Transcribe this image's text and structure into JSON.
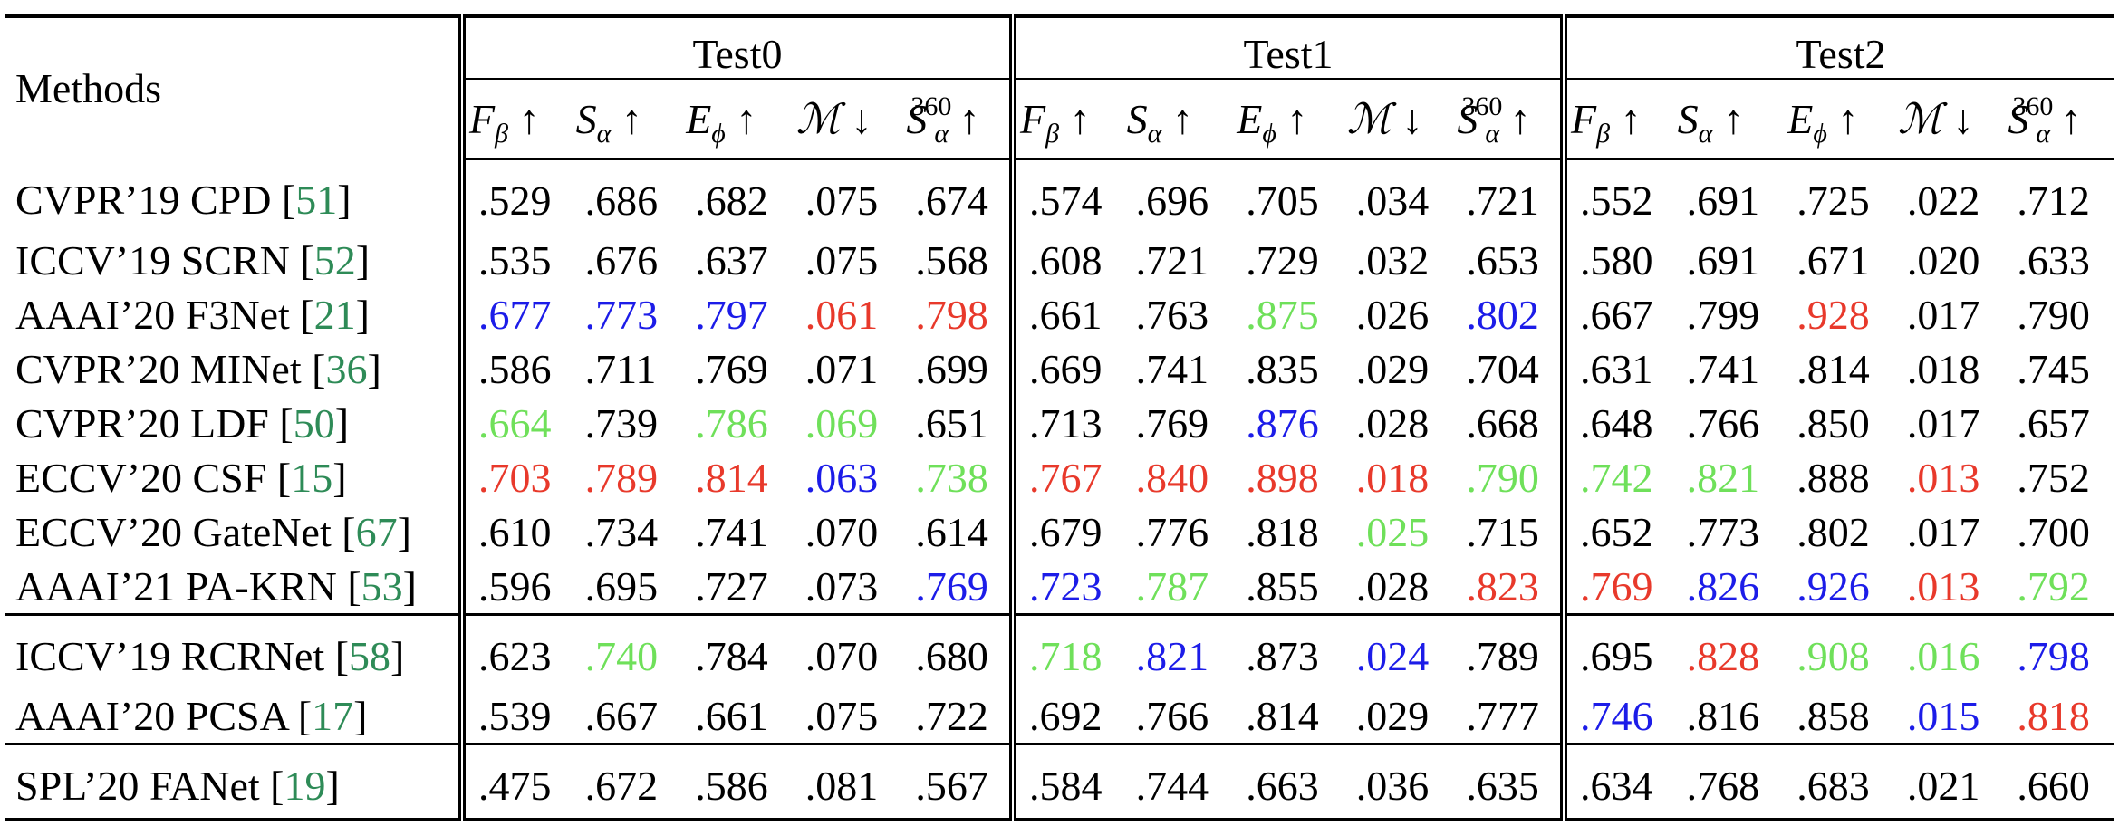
{
  "header": {
    "methods": "Methods",
    "groups": [
      "Test0",
      "Test1",
      "Test2"
    ],
    "columns": [
      {
        "base": "F",
        "sub": "β",
        "arrow": "↑"
      },
      {
        "base": "S",
        "sub": "α",
        "arrow": "↑"
      },
      {
        "base": "E",
        "sub": "ϕ",
        "arrow": "↑"
      },
      {
        "base": "ℳ",
        "arrow": "↓"
      },
      {
        "base": "S",
        "sub": "α",
        "sup": "360",
        "arrow": "↑"
      }
    ]
  },
  "cite_brackets": [
    "[",
    "]"
  ],
  "palette": {
    "k": "#000000",
    "r": "#e8392b",
    "g": "#6fe05a",
    "b": "#1c1ce8",
    "cite": "#2e8b57"
  },
  "groups": [
    [
      {
        "method": "CVPR’19 CPD",
        "ref": "51",
        "values": [
          ".529",
          ".686",
          ".682",
          ".075",
          ".674",
          ".574",
          ".696",
          ".705",
          ".034",
          ".721",
          ".552",
          ".691",
          ".725",
          ".022",
          ".712"
        ],
        "colors": "kkkkkkkkkkkkkkk"
      },
      {
        "method": "ICCV’19 SCRN",
        "ref": "52",
        "values": [
          ".535",
          ".676",
          ".637",
          ".075",
          ".568",
          ".608",
          ".721",
          ".729",
          ".032",
          ".653",
          ".580",
          ".691",
          ".671",
          ".020",
          ".633"
        ],
        "colors": "kkkkkkkkkkkkkkk"
      },
      {
        "method": "AAAI’20 F3Net",
        "ref": "21",
        "values": [
          ".677",
          ".773",
          ".797",
          ".061",
          ".798",
          ".661",
          ".763",
          ".875",
          ".026",
          ".802",
          ".667",
          ".799",
          ".928",
          ".017",
          ".790"
        ],
        "colors": "bbbrrkkgkbkkrkk"
      },
      {
        "method": "CVPR’20 MINet",
        "ref": "36",
        "values": [
          ".586",
          ".711",
          ".769",
          ".071",
          ".699",
          ".669",
          ".741",
          ".835",
          ".029",
          ".704",
          ".631",
          ".741",
          ".814",
          ".018",
          ".745"
        ],
        "colors": "kkkkkkkkkkkkkkk"
      },
      {
        "method": "CVPR’20 LDF",
        "ref": "50",
        "values": [
          ".664",
          ".739",
          ".786",
          ".069",
          ".651",
          ".713",
          ".769",
          ".876",
          ".028",
          ".668",
          ".648",
          ".766",
          ".850",
          ".017",
          ".657"
        ],
        "colors": "gkggkkkbkkkkkkk"
      },
      {
        "method": "ECCV’20 CSF",
        "ref": "15",
        "values": [
          ".703",
          ".789",
          ".814",
          ".063",
          ".738",
          ".767",
          ".840",
          ".898",
          ".018",
          ".790",
          ".742",
          ".821",
          ".888",
          ".013",
          ".752"
        ],
        "colors": "rrrbgrrrrgggkrk"
      },
      {
        "method": "ECCV’20 GateNet",
        "ref": "67",
        "values": [
          ".610",
          ".734",
          ".741",
          ".070",
          ".614",
          ".679",
          ".776",
          ".818",
          ".025",
          ".715",
          ".652",
          ".773",
          ".802",
          ".017",
          ".700"
        ],
        "colors": "kkkkkkkkgkkkkkk"
      },
      {
        "method": "AAAI’21 PA-KRN",
        "ref": "53",
        "values": [
          ".596",
          ".695",
          ".727",
          ".073",
          ".769",
          ".723",
          ".787",
          ".855",
          ".028",
          ".823",
          ".769",
          ".826",
          ".926",
          ".013",
          ".792"
        ],
        "colors": "kkkkbbgkkrrbbrg"
      }
    ],
    [
      {
        "method": "ICCV’19 RCRNet",
        "ref": "58",
        "values": [
          ".623",
          ".740",
          ".784",
          ".070",
          ".680",
          ".718",
          ".821",
          ".873",
          ".024",
          ".789",
          ".695",
          ".828",
          ".908",
          ".016",
          ".798"
        ],
        "colors": "kgkkkgbkbkkrggb"
      },
      {
        "method": "AAAI’20 PCSA",
        "ref": "17",
        "values": [
          ".539",
          ".667",
          ".661",
          ".075",
          ".722",
          ".692",
          ".766",
          ".814",
          ".029",
          ".777",
          ".746",
          ".816",
          ".858",
          ".015",
          ".818"
        ],
        "colors": "kkkkkkkkkkbkkbr"
      }
    ],
    [
      {
        "method": "SPL’20 FANet",
        "ref": "19",
        "values": [
          ".475",
          ".672",
          ".586",
          ".081",
          ".567",
          ".584",
          ".744",
          ".663",
          ".036",
          ".635",
          ".634",
          ".768",
          ".683",
          ".021",
          ".660"
        ],
        "colors": "kkkkkkkkkkkkkkk"
      }
    ]
  ]
}
